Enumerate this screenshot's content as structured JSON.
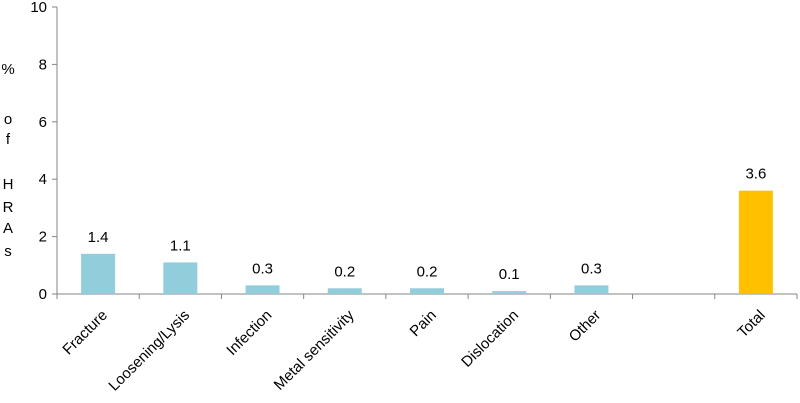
{
  "chart_data": {
    "type": "bar",
    "ylabel": "% of HRAs",
    "ylabel_letters": [
      "%",
      "",
      "o",
      "f",
      "",
      "H",
      "R",
      "A",
      "s"
    ],
    "ylim": [
      0,
      10
    ],
    "yticks": [
      "0",
      "2",
      "4",
      "6",
      "8",
      "10"
    ],
    "categories": [
      "Fracture",
      "Loosening/Lysis",
      "Infection",
      "Metal sensitivity",
      "Pain",
      "Dislocation",
      "Other",
      "",
      "Total"
    ],
    "values": [
      1.4,
      1.1,
      0.3,
      0.2,
      0.2,
      0.1,
      0.3,
      null,
      3.6
    ],
    "data_labels": [
      "1.4",
      "1.1",
      "0.3",
      "0.2",
      "0.2",
      "0.1",
      "0.3",
      "",
      "3.6"
    ],
    "colors": [
      "#92CDDC",
      "#92CDDC",
      "#92CDDC",
      "#92CDDC",
      "#92CDDC",
      "#92CDDC",
      "#92CDDC",
      "#92CDDC",
      "#FFC000"
    ],
    "axis_color": "#868686",
    "grid": false,
    "legend": "none"
  }
}
